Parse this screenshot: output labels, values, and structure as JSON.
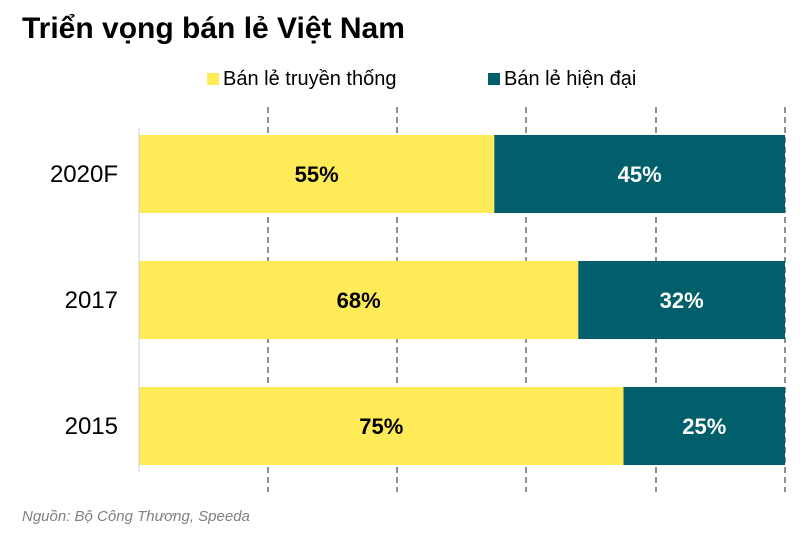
{
  "title": "Triển vọng bán lẻ Việt Nam",
  "source": "Nguồn:  Bộ Công Thương, Speeda",
  "chart_data": {
    "type": "bar",
    "orientation": "horizontal",
    "stacked": true,
    "percent_stacked": true,
    "title": "Triển vọng bán lẻ Việt Nam",
    "categories": [
      "2020F",
      "2017",
      "2015"
    ],
    "series": [
      {
        "name": "Bán lẻ truyền thống",
        "values": [
          55,
          68,
          75
        ],
        "labels": [
          "55%",
          "68%",
          "75%"
        ],
        "color": "#ffeb57",
        "label_color": "#000000"
      },
      {
        "name": "Bán lẻ hiện đại",
        "values": [
          45,
          32,
          25
        ],
        "labels": [
          "45%",
          "32%",
          "25%"
        ],
        "color": "#005f6a",
        "label_color": "#ffffff"
      }
    ],
    "xlim": [
      0,
      100
    ],
    "grid": "vertical dashed",
    "legend": "top"
  }
}
